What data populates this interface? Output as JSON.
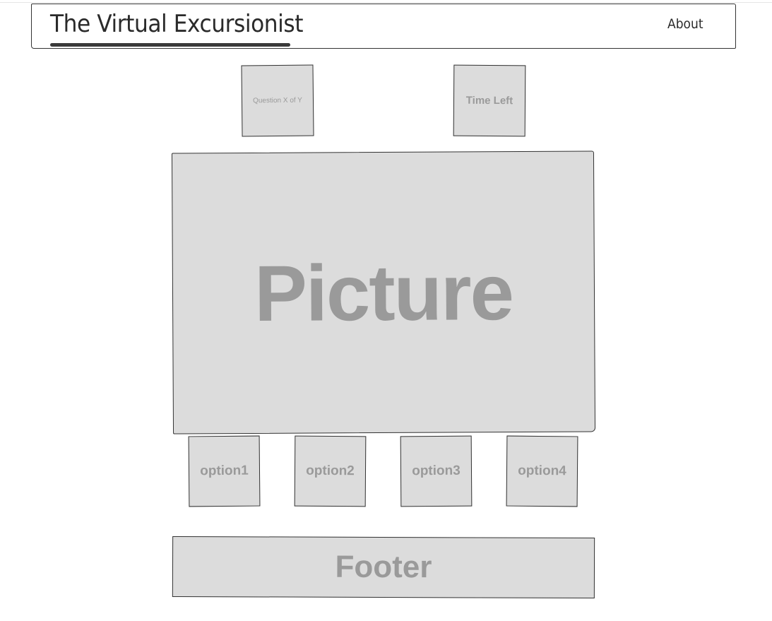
{
  "header": {
    "brand": "The Virtual Excursionist",
    "nav_about": "About"
  },
  "quiz": {
    "question_counter": "Question X of Y",
    "time_left": "Time Left",
    "picture_label": "Picture",
    "options": [
      "option1",
      "option2",
      "option3",
      "option4"
    ]
  },
  "footer": {
    "label": "Footer"
  }
}
